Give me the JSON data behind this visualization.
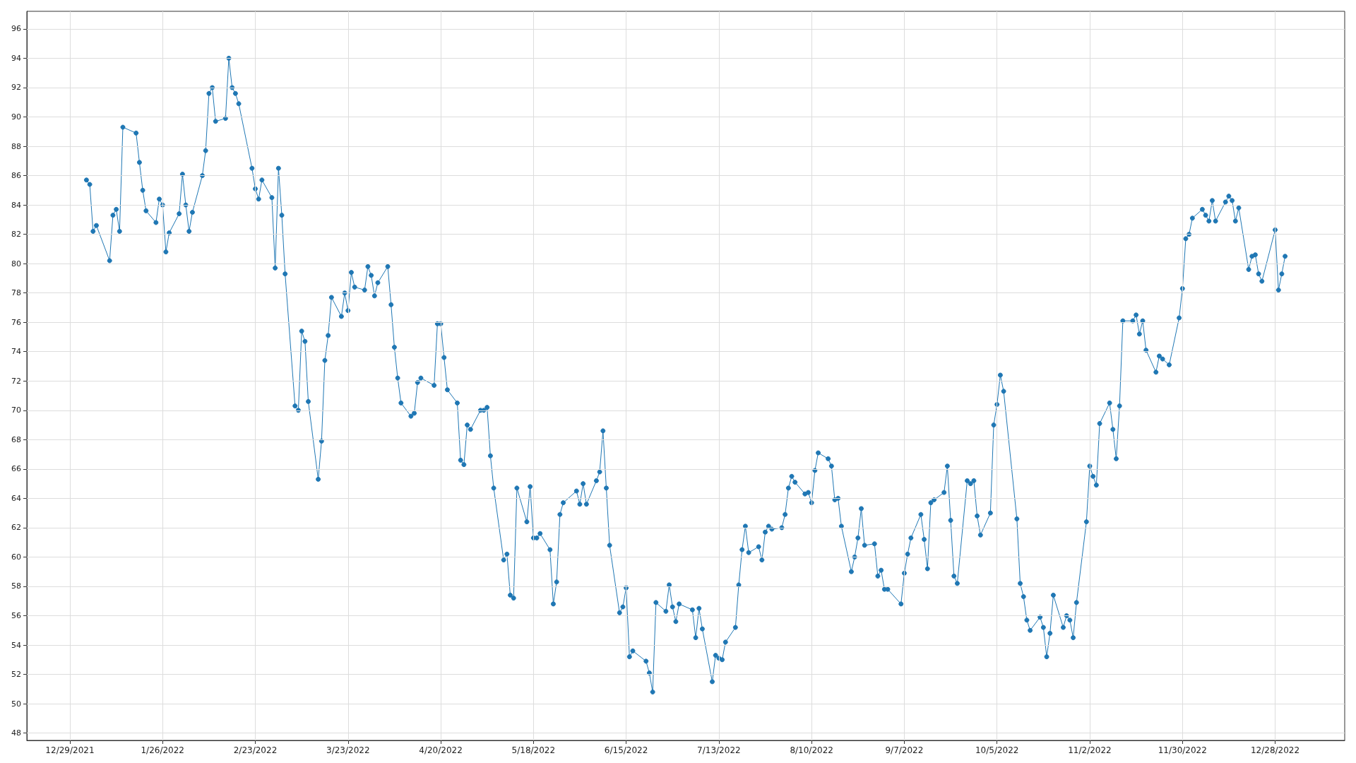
{
  "chart_data": {
    "type": "line",
    "marker": "circle",
    "line_style": "solid",
    "grid": true,
    "legend": false,
    "xlim": [
      "2021-12-16",
      "2023-01-18"
    ],
    "xticks": [
      {
        "value": "2021-12-29",
        "label": "12/29/2021"
      },
      {
        "value": "2022-01-26",
        "label": "1/26/2022"
      },
      {
        "value": "2022-02-23",
        "label": "2/23/2022"
      },
      {
        "value": "2022-03-23",
        "label": "3/23/2022"
      },
      {
        "value": "2022-04-20",
        "label": "4/20/2022"
      },
      {
        "value": "2022-05-18",
        "label": "5/18/2022"
      },
      {
        "value": "2022-06-15",
        "label": "6/15/2022"
      },
      {
        "value": "2022-07-13",
        "label": "7/13/2022"
      },
      {
        "value": "2022-08-10",
        "label": "8/10/2022"
      },
      {
        "value": "2022-09-07",
        "label": "9/7/2022"
      },
      {
        "value": "2022-10-05",
        "label": "10/5/2022"
      },
      {
        "value": "2022-11-02",
        "label": "11/2/2022"
      },
      {
        "value": "2022-11-30",
        "label": "11/30/2022"
      },
      {
        "value": "2022-12-28",
        "label": "12/28/2022"
      }
    ],
    "ylim": [
      47.5,
      97.2
    ],
    "yticks": [
      48,
      50,
      52,
      54,
      56,
      58,
      60,
      62,
      64,
      66,
      68,
      70,
      72,
      74,
      76,
      78,
      80,
      82,
      84,
      86,
      88,
      90,
      92,
      94,
      96
    ],
    "series": [
      {
        "color": "#1f77b4",
        "x": [
          "2022-01-03",
          "2022-01-04",
          "2022-01-05",
          "2022-01-06",
          "2022-01-10",
          "2022-01-11",
          "2022-01-12",
          "2022-01-13",
          "2022-01-14",
          "2022-01-18",
          "2022-01-19",
          "2022-01-20",
          "2022-01-21",
          "2022-01-24",
          "2022-01-25",
          "2022-01-26",
          "2022-01-27",
          "2022-01-28",
          "2022-01-31",
          "2022-02-01",
          "2022-02-02",
          "2022-02-03",
          "2022-02-04",
          "2022-02-07",
          "2022-02-08",
          "2022-02-09",
          "2022-02-10",
          "2022-02-11",
          "2022-02-14",
          "2022-02-15",
          "2022-02-16",
          "2022-02-17",
          "2022-02-18",
          "2022-02-22",
          "2022-02-23",
          "2022-02-24",
          "2022-02-25",
          "2022-02-28",
          "2022-03-01",
          "2022-03-02",
          "2022-03-03",
          "2022-03-04",
          "2022-03-07",
          "2022-03-08",
          "2022-03-09",
          "2022-03-10",
          "2022-03-11",
          "2022-03-14",
          "2022-03-15",
          "2022-03-16",
          "2022-03-17",
          "2022-03-18",
          "2022-03-21",
          "2022-03-22",
          "2022-03-23",
          "2022-03-24",
          "2022-03-25",
          "2022-03-28",
          "2022-03-29",
          "2022-03-30",
          "2022-03-31",
          "2022-04-01",
          "2022-04-04",
          "2022-04-05",
          "2022-04-06",
          "2022-04-07",
          "2022-04-08",
          "2022-04-11",
          "2022-04-12",
          "2022-04-13",
          "2022-04-14",
          "2022-04-18",
          "2022-04-19",
          "2022-04-20",
          "2022-04-21",
          "2022-04-22",
          "2022-04-25",
          "2022-04-26",
          "2022-04-27",
          "2022-04-28",
          "2022-04-29",
          "2022-05-02",
          "2022-05-03",
          "2022-05-04",
          "2022-05-05",
          "2022-05-06",
          "2022-05-09",
          "2022-05-10",
          "2022-05-11",
          "2022-05-12",
          "2022-05-13",
          "2022-05-16",
          "2022-05-17",
          "2022-05-18",
          "2022-05-19",
          "2022-05-20",
          "2022-05-23",
          "2022-05-24",
          "2022-05-25",
          "2022-05-26",
          "2022-05-27",
          "2022-05-31",
          "2022-06-01",
          "2022-06-02",
          "2022-06-03",
          "2022-06-06",
          "2022-06-07",
          "2022-06-08",
          "2022-06-09",
          "2022-06-10",
          "2022-06-13",
          "2022-06-14",
          "2022-06-15",
          "2022-06-16",
          "2022-06-17",
          "2022-06-21",
          "2022-06-22",
          "2022-06-23",
          "2022-06-24",
          "2022-06-27",
          "2022-06-28",
          "2022-06-29",
          "2022-06-30",
          "2022-07-01",
          "2022-07-05",
          "2022-07-06",
          "2022-07-07",
          "2022-07-08",
          "2022-07-11",
          "2022-07-12",
          "2022-07-13",
          "2022-07-14",
          "2022-07-15",
          "2022-07-18",
          "2022-07-19",
          "2022-07-20",
          "2022-07-21",
          "2022-07-22",
          "2022-07-25",
          "2022-07-26",
          "2022-07-27",
          "2022-07-28",
          "2022-07-29",
          "2022-08-01",
          "2022-08-02",
          "2022-08-03",
          "2022-08-04",
          "2022-08-05",
          "2022-08-08",
          "2022-08-09",
          "2022-08-10",
          "2022-08-11",
          "2022-08-12",
          "2022-08-15",
          "2022-08-16",
          "2022-08-17",
          "2022-08-18",
          "2022-08-19",
          "2022-08-22",
          "2022-08-23",
          "2022-08-24",
          "2022-08-25",
          "2022-08-26",
          "2022-08-29",
          "2022-08-30",
          "2022-08-31",
          "2022-09-01",
          "2022-09-02",
          "2022-09-06",
          "2022-09-07",
          "2022-09-08",
          "2022-09-09",
          "2022-09-12",
          "2022-09-13",
          "2022-09-14",
          "2022-09-15",
          "2022-09-16",
          "2022-09-19",
          "2022-09-20",
          "2022-09-21",
          "2022-09-22",
          "2022-09-23",
          "2022-09-26",
          "2022-09-27",
          "2022-09-28",
          "2022-09-29",
          "2022-09-30",
          "2022-10-03",
          "2022-10-04",
          "2022-10-05",
          "2022-10-06",
          "2022-10-07",
          "2022-10-11",
          "2022-10-12",
          "2022-10-13",
          "2022-10-14",
          "2022-10-15",
          "2022-10-18",
          "2022-10-19",
          "2022-10-20",
          "2022-10-21",
          "2022-10-22",
          "2022-10-25",
          "2022-10-26",
          "2022-10-27",
          "2022-10-28",
          "2022-10-29",
          "2022-11-01",
          "2022-11-02",
          "2022-11-03",
          "2022-11-04",
          "2022-11-05",
          "2022-11-08",
          "2022-11-09",
          "2022-11-10",
          "2022-11-11",
          "2022-11-12",
          "2022-11-15",
          "2022-11-16",
          "2022-11-17",
          "2022-11-18",
          "2022-11-19",
          "2022-11-22",
          "2022-11-23",
          "2022-11-24",
          "2022-11-26",
          "2022-11-29",
          "2022-11-30",
          "2022-12-01",
          "2022-12-02",
          "2022-12-03",
          "2022-12-06",
          "2022-12-07",
          "2022-12-08",
          "2022-12-09",
          "2022-12-10",
          "2022-12-13",
          "2022-12-14",
          "2022-12-15",
          "2022-12-16",
          "2022-12-17",
          "2022-12-20",
          "2022-12-21",
          "2022-12-22",
          "2022-12-23",
          "2022-12-24",
          "2022-12-28",
          "2022-12-29",
          "2022-12-30",
          "2022-12-31"
        ],
        "values": [
          85.7,
          85.4,
          82.2,
          82.6,
          80.2,
          83.3,
          83.7,
          82.2,
          89.3,
          88.9,
          86.9,
          85.0,
          83.6,
          82.8,
          84.4,
          84.0,
          80.8,
          82.1,
          83.4,
          86.1,
          84.0,
          82.2,
          83.5,
          86.0,
          87.7,
          91.6,
          92.0,
          89.7,
          89.9,
          94.0,
          92.0,
          91.6,
          90.9,
          86.5,
          85.1,
          84.4,
          85.7,
          84.5,
          79.7,
          86.5,
          83.3,
          79.3,
          70.3,
          70.0,
          75.4,
          74.7,
          70.6,
          65.3,
          67.9,
          73.4,
          75.1,
          77.7,
          76.4,
          78.0,
          76.8,
          79.4,
          78.4,
          78.2,
          79.8,
          79.2,
          77.8,
          78.7,
          79.8,
          77.2,
          74.3,
          72.2,
          70.5,
          69.6,
          69.8,
          71.9,
          72.2,
          71.7,
          75.9,
          75.9,
          73.6,
          71.4,
          70.5,
          66.6,
          66.3,
          69.0,
          68.7,
          70.0,
          70.0,
          70.2,
          66.9,
          64.7,
          59.8,
          60.2,
          57.4,
          57.2,
          64.7,
          62.4,
          64.8,
          61.3,
          61.3,
          61.6,
          60.5,
          56.8,
          58.3,
          62.9,
          63.7,
          64.5,
          63.6,
          65.0,
          63.6,
          65.2,
          65.8,
          68.6,
          64.7,
          60.8,
          56.2,
          56.6,
          57.9,
          53.2,
          53.6,
          52.9,
          52.1,
          50.8,
          56.9,
          56.3,
          58.1,
          56.6,
          55.6,
          56.8,
          56.4,
          54.5,
          56.5,
          55.1,
          51.5,
          53.3,
          53.1,
          53.0,
          54.2,
          55.2,
          58.1,
          60.5,
          62.1,
          60.3,
          60.7,
          59.8,
          61.7,
          62.1,
          61.9,
          62.0,
          62.9,
          64.7,
          65.5,
          65.1,
          64.3,
          64.4,
          63.7,
          65.9,
          67.1,
          66.7,
          66.2,
          63.9,
          64.0,
          62.1,
          59.0,
          60.0,
          61.3,
          63.3,
          60.8,
          60.9,
          58.7,
          59.1,
          57.8,
          57.8,
          56.8,
          58.9,
          60.2,
          61.3,
          62.9,
          61.2,
          59.2,
          63.7,
          63.9,
          64.4,
          66.2,
          62.5,
          58.7,
          58.2,
          65.2,
          65.0,
          65.2,
          62.8,
          61.5,
          63.0,
          69.0,
          70.4,
          72.4,
          71.3,
          62.6,
          58.2,
          57.3,
          55.7,
          55.0,
          55.9,
          55.2,
          53.2,
          54.8,
          57.4,
          55.2,
          56.0,
          55.7,
          54.5,
          56.9,
          62.4,
          66.2,
          65.5,
          64.9,
          69.1,
          70.5,
          68.7,
          66.7,
          70.3,
          76.1,
          76.1,
          76.5,
          75.2,
          76.1,
          74.1,
          72.6,
          73.7,
          73.5,
          73.1,
          76.3,
          78.3,
          81.7,
          82.0,
          83.1,
          83.7,
          83.3,
          82.9,
          84.3,
          82.9,
          84.2,
          84.6,
          84.3,
          82.9,
          83.8,
          79.6,
          80.5,
          80.6,
          79.3,
          78.8,
          82.3,
          78.2,
          79.3,
          80.5
        ]
      }
    ]
  }
}
